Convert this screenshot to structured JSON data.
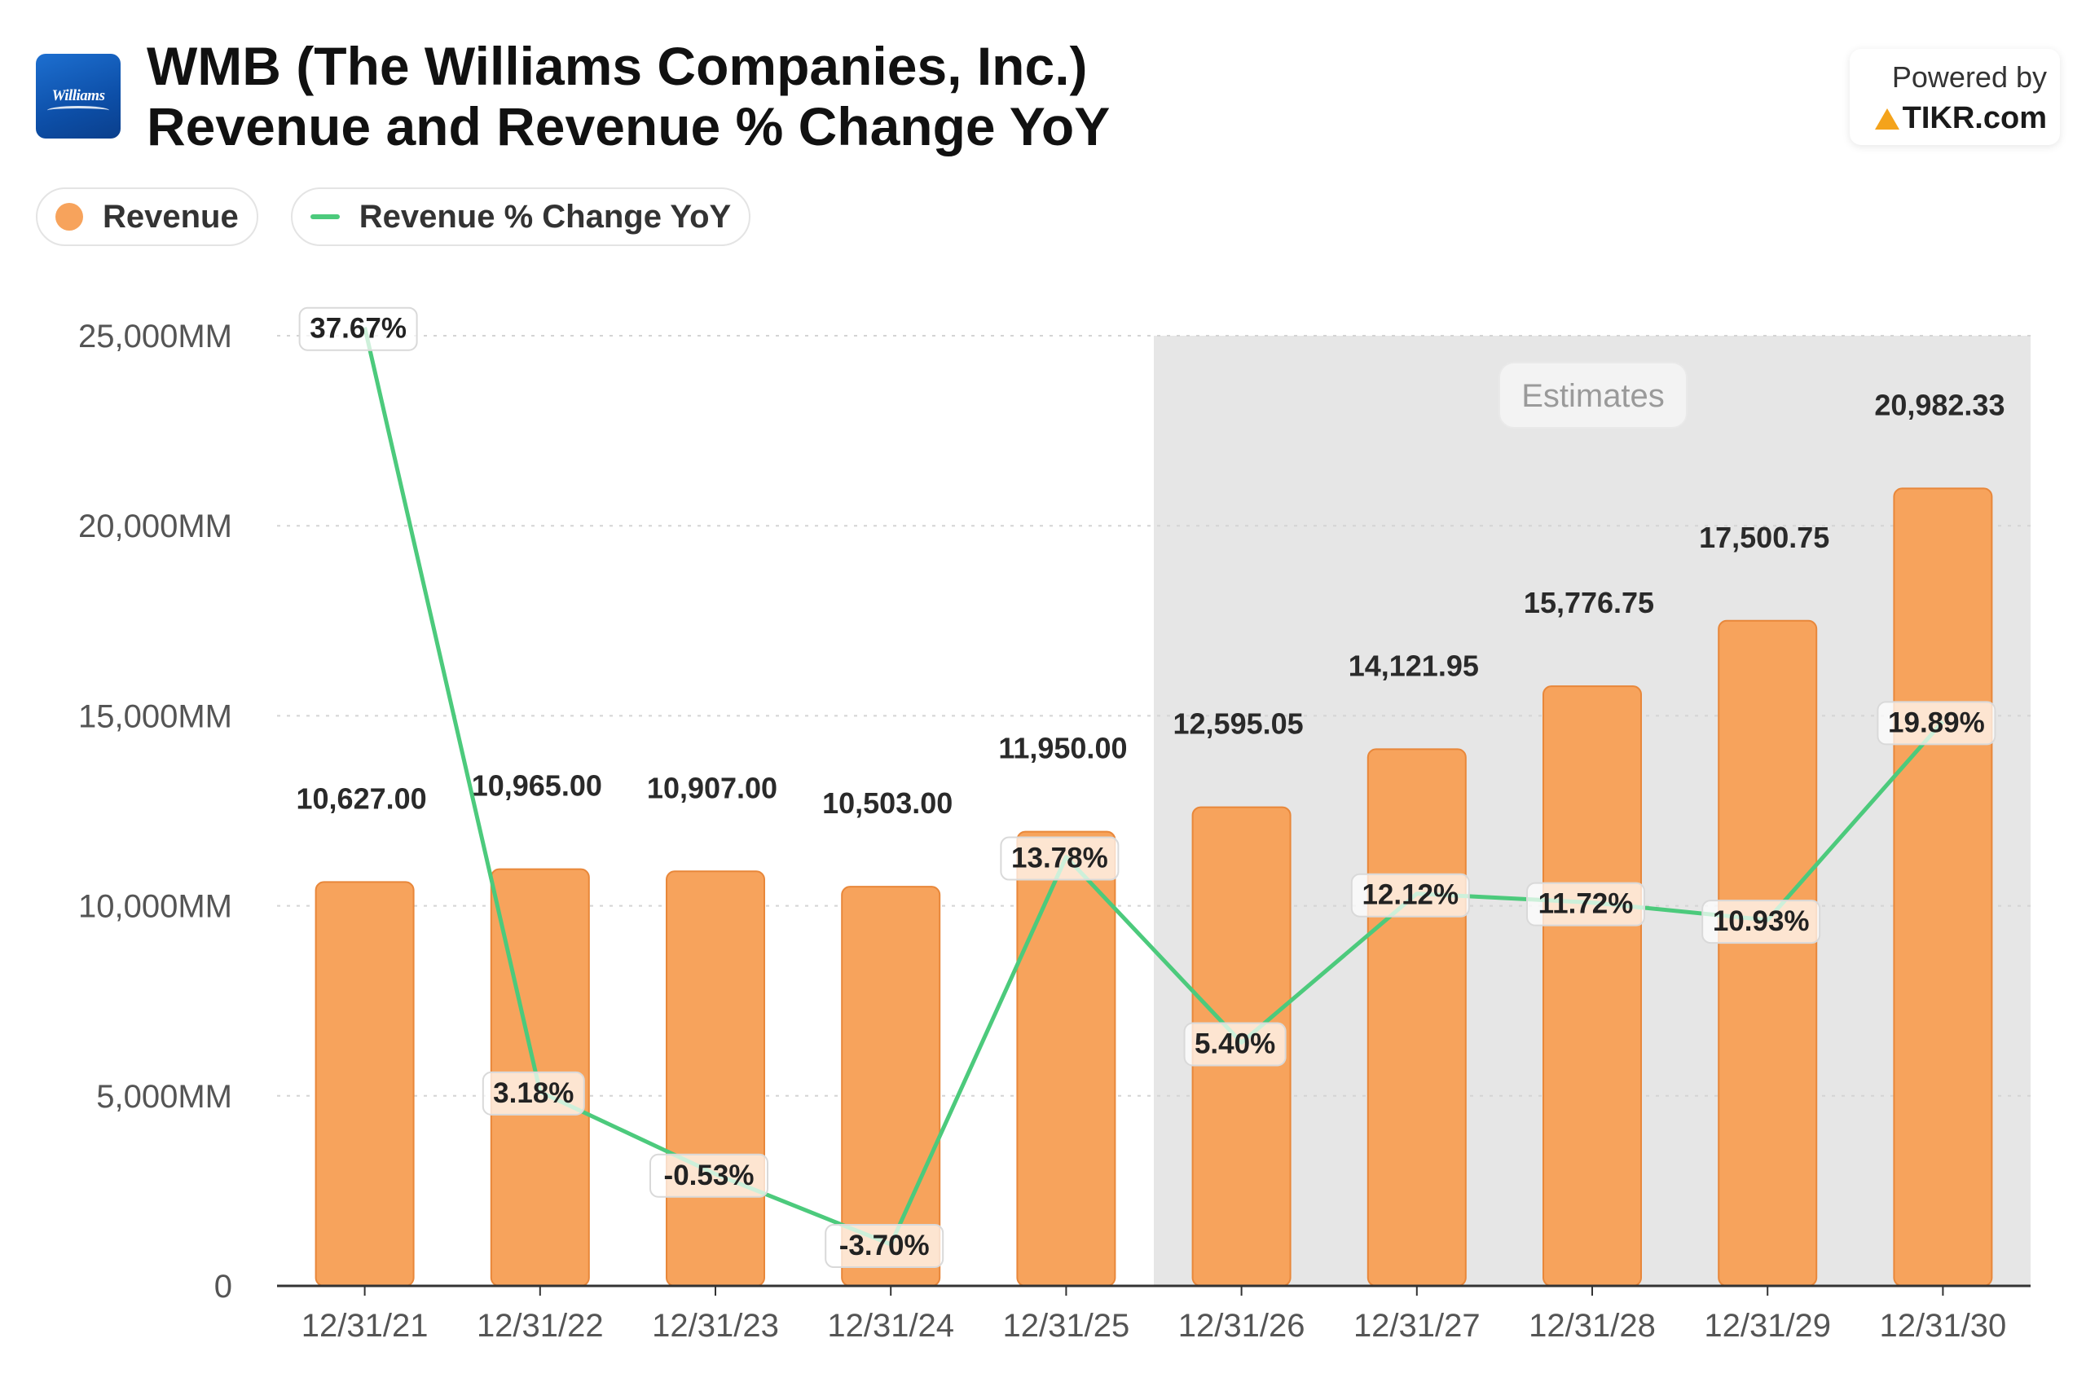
{
  "header": {
    "title_line1": "WMB (The Williams Companies, Inc.)",
    "title_line2": "Revenue and Revenue % Change YoY",
    "logo_text": "Williams",
    "powered_by": "Powered by",
    "brand": "TIKR.com"
  },
  "legend": {
    "revenue": "Revenue",
    "change": "Revenue % Change YoY"
  },
  "estimates_label": "Estimates",
  "colors": {
    "bar": "#f7a35c",
    "bar_border": "#e8873a",
    "line": "#4cca7c",
    "estimate_bg": "#e6e6e6",
    "brand_accent": "#f4a31b",
    "logo_blue": "#1560bd"
  },
  "chart_data": {
    "type": "bar",
    "categories": [
      "12/31/21",
      "12/31/22",
      "12/31/23",
      "12/31/24",
      "12/31/25",
      "12/31/26",
      "12/31/27",
      "12/31/28",
      "12/31/29",
      "12/31/30"
    ],
    "series": [
      {
        "name": "Revenue",
        "type": "bar",
        "values": [
          10627.0,
          10965.0,
          10907.0,
          10503.0,
          11950.0,
          12595.05,
          14121.95,
          15776.75,
          17500.75,
          20982.33
        ],
        "labels": [
          "10,627.00",
          "10,965.00",
          "10,907.00",
          "10,503.00",
          "11,950.00",
          "12,595.05",
          "14,121.95",
          "15,776.75",
          "17,500.75",
          "20,982.33"
        ]
      },
      {
        "name": "Revenue % Change YoY",
        "type": "line",
        "values": [
          37.67,
          3.18,
          -0.53,
          -3.7,
          13.78,
          5.4,
          12.12,
          11.72,
          10.93,
          19.89
        ],
        "labels": [
          "37.67%",
          "3.18%",
          "-0.53%",
          "-3.70%",
          "13.78%",
          "5.40%",
          "12.12%",
          "11.72%",
          "10.93%",
          "19.89%"
        ]
      }
    ],
    "yaxis": {
      "ticks": [
        "0",
        "5,000MM",
        "10,000MM",
        "15,000MM",
        "20,000MM",
        "25,000MM"
      ],
      "tick_values": [
        0,
        5000,
        10000,
        15000,
        20000,
        25000
      ],
      "ylim": [
        0,
        25000
      ]
    },
    "estimates_from_index": 5,
    "grid": true,
    "legend_position": "top-left"
  }
}
